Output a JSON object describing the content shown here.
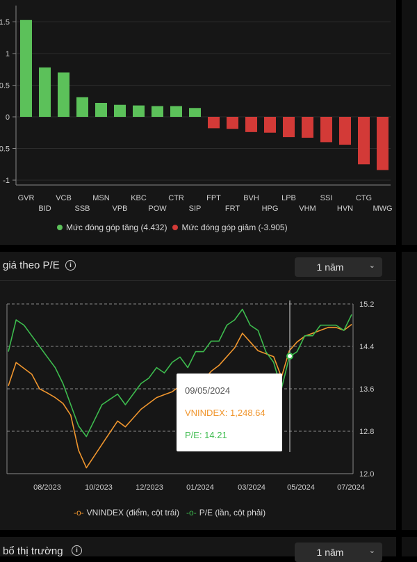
{
  "top_panel": {
    "legend": {
      "positive_label": "Mức đóng góp tăng (4.432)",
      "negative_label": "Mức đóng góp giảm (-3.905)"
    }
  },
  "pe_panel": {
    "title": "giá theo P/E",
    "period": "1 năm",
    "tooltip": {
      "date": "09/05/2024",
      "vnindex": "VNINDEX: 1,248.64",
      "pe": "P/E: 14.21"
    },
    "legend": {
      "vnindex_label": "VNINDEX (điểm, cột trái)",
      "pe_label": "P/E (lần, cột phải)"
    }
  },
  "bottom_panel": {
    "title": "bổ thị trường",
    "period": "1 năm"
  },
  "chart_data": [
    {
      "type": "bar",
      "categories": [
        "GVR",
        "BID",
        "VCB",
        "SSB",
        "MSN",
        "VPB",
        "KBC",
        "POW",
        "CTR",
        "SIP",
        "FPT",
        "FRT",
        "BVH",
        "HPG",
        "LPB",
        "VHM",
        "SSI",
        "HVN",
        "CTG",
        "MWG"
      ],
      "values": [
        1.53,
        0.78,
        0.7,
        0.31,
        0.22,
        0.19,
        0.18,
        0.17,
        0.17,
        0.14,
        -0.18,
        -0.19,
        -0.24,
        -0.25,
        -0.32,
        -0.33,
        -0.4,
        -0.44,
        -0.75,
        -0.84
      ],
      "colors": {
        "positive": "#5cc15a",
        "negative": "#d33a37"
      },
      "y_ticks": [
        "1.5",
        "1",
        "0.5",
        "0",
        "-0.5",
        "-1"
      ],
      "ylim": [
        -1.05,
        1.85
      ]
    },
    {
      "type": "line",
      "x_ticks": [
        "08/2023",
        "10/2023",
        "12/2023",
        "01/2024",
        "03/2024",
        "05/2024",
        "07/2024"
      ],
      "y_right_ticks": [
        "15.2",
        "14.4",
        "13.6",
        "12.8",
        "12.0"
      ],
      "ylim_right": [
        12.0,
        15.2
      ],
      "series": [
        {
          "name": "VNINDEX",
          "color": "#f0962e",
          "values": [
            1180,
            1220,
            1210,
            1200,
            1175,
            1168,
            1160,
            1150,
            1130,
            1070,
            1040,
            1060,
            1080,
            1100,
            1120,
            1110,
            1125,
            1140,
            1150,
            1160,
            1165,
            1170,
            1180,
            1175,
            1185,
            1190,
            1205,
            1215,
            1230,
            1245,
            1270,
            1255,
            1240,
            1235,
            1230,
            1195,
            1240,
            1255,
            1265,
            1270,
            1275,
            1280,
            1280,
            1275,
            1285
          ]
        },
        {
          "name": "P/E",
          "color": "#3dbb4e",
          "values": [
            14.3,
            14.9,
            14.8,
            14.6,
            14.4,
            14.2,
            14.0,
            13.7,
            13.3,
            12.9,
            12.7,
            13.0,
            13.3,
            13.4,
            13.5,
            13.3,
            13.5,
            13.7,
            13.8,
            14.0,
            13.9,
            14.1,
            14.2,
            14.0,
            14.3,
            14.3,
            14.5,
            14.5,
            14.8,
            14.9,
            15.1,
            14.8,
            14.7,
            14.3,
            14.1,
            13.6,
            14.2,
            14.3,
            14.6,
            14.6,
            14.8,
            14.8,
            14.8,
            14.7,
            15.0
          ]
        }
      ]
    }
  ]
}
